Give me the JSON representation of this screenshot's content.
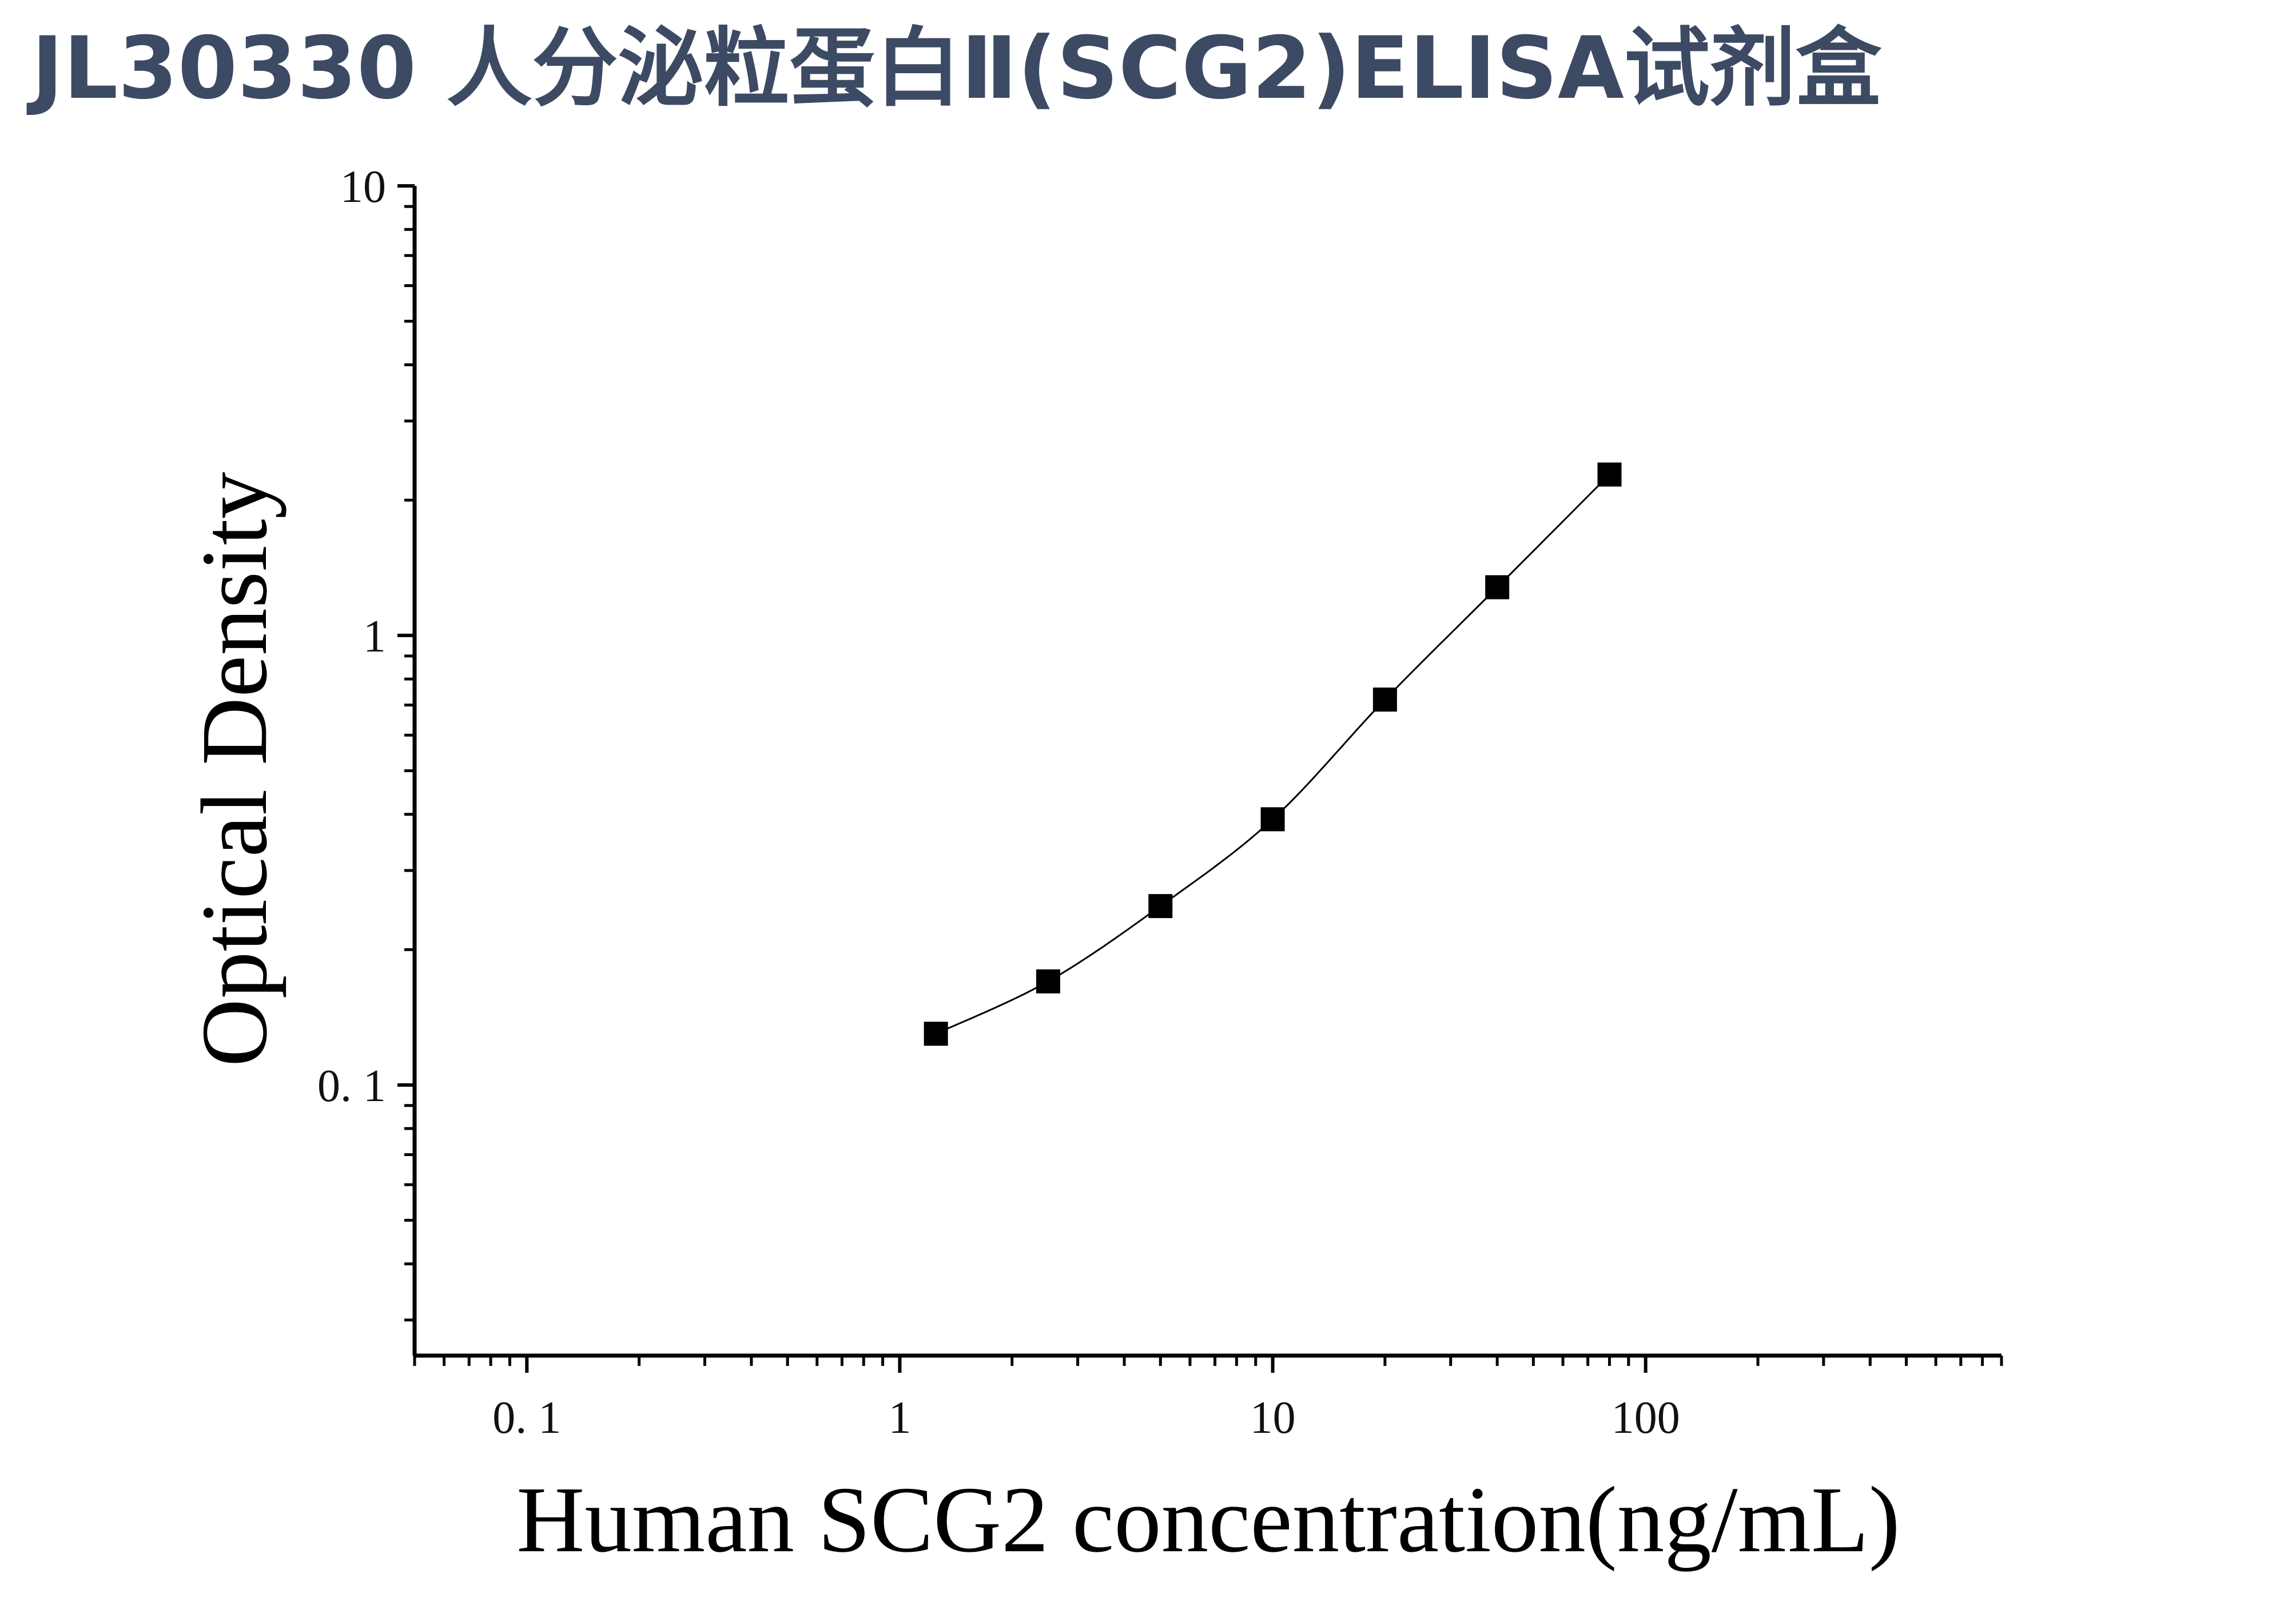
{
  "title": "JL30330 人分泌粒蛋白Ⅱ(SCG2)ELISA试剂盒",
  "colors": {
    "title": "#3d4a63",
    "axis": "#000000",
    "marker": "#000000",
    "curve": "#000000"
  },
  "chart_data": {
    "type": "scatter",
    "x_scale": "log",
    "y_scale": "log",
    "xlabel": "Human SCG2 concentration(ng/mL)",
    "ylabel": "Optical Density",
    "xlim": [
      0.05,
      900
    ],
    "ylim": [
      0.025,
      10
    ],
    "x_ticks": [
      {
        "value": 0.1,
        "label": "0. 1"
      },
      {
        "value": 1,
        "label": "1"
      },
      {
        "value": 10,
        "label": "10"
      },
      {
        "value": 100,
        "label": "100"
      }
    ],
    "y_ticks": [
      {
        "value": 0.1,
        "label": "0. 1"
      },
      {
        "value": 1,
        "label": "1"
      },
      {
        "value": 10,
        "label": "10"
      }
    ],
    "series": [
      {
        "marker": "square",
        "x": [
          1.25,
          2.5,
          5,
          10,
          20,
          40,
          80
        ],
        "y": [
          0.13,
          0.17,
          0.25,
          0.39,
          0.72,
          1.28,
          2.28
        ]
      }
    ],
    "fit_curve": true,
    "grid": false
  }
}
